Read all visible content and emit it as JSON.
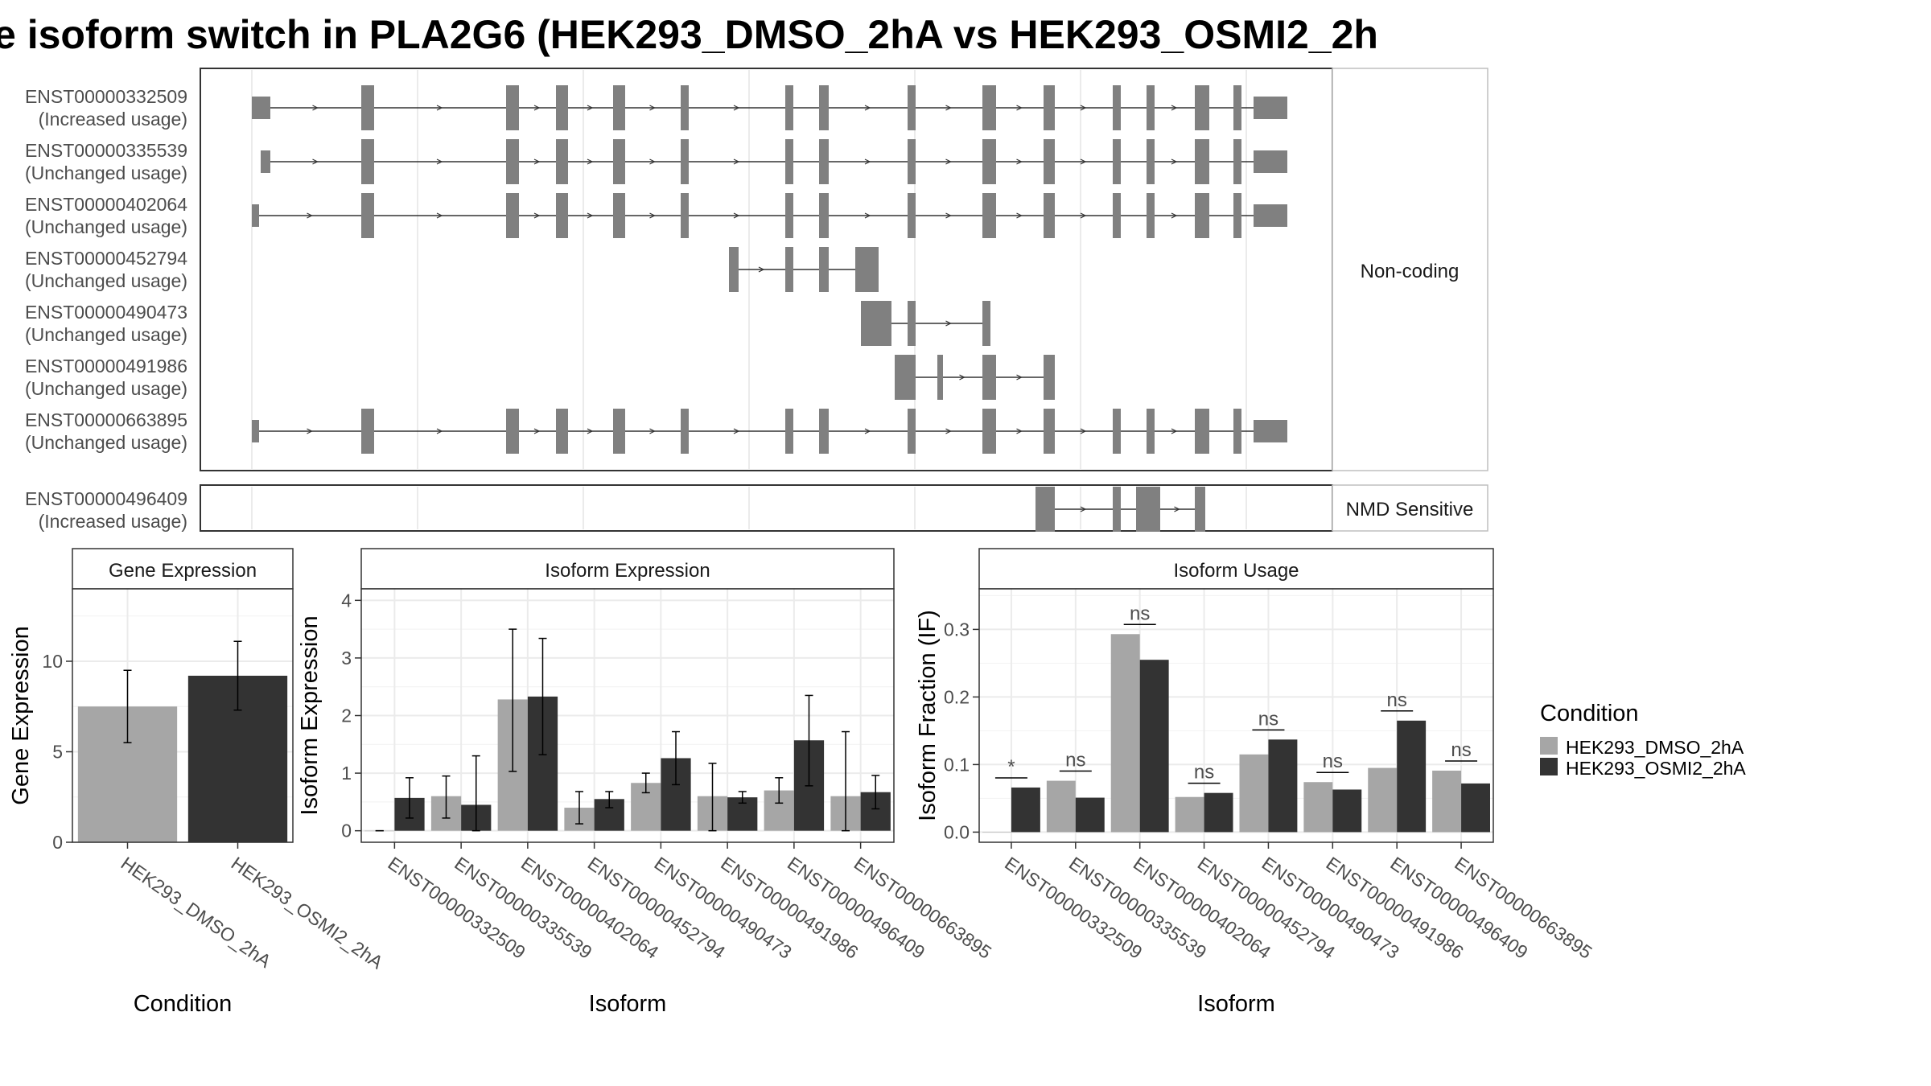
{
  "title": "e isoform switch in PLA2G6 (HEK293_DMSO_2hA vs HEK293_OSMI2_2h",
  "colors": {
    "dmso": "#a6a6a6",
    "osmi": "#333333",
    "exon": "#808080",
    "grid": "#ebebeb",
    "border": "#333333",
    "strip": "#d9d9d9"
  },
  "transcript_plot": {
    "panels": [
      {
        "label": "Non-coding",
        "transcripts": [
          {
            "id": "ENST00000332509",
            "usage": "(Increased usage)"
          },
          {
            "id": "ENST00000335539",
            "usage": "(Unchanged usage)"
          },
          {
            "id": "ENST00000402064",
            "usage": "(Unchanged usage)"
          },
          {
            "id": "ENST00000452794",
            "usage": "(Unchanged usage)"
          },
          {
            "id": "ENST00000490473",
            "usage": "(Unchanged usage)"
          },
          {
            "id": "ENST00000491986",
            "usage": "(Unchanged usage)"
          },
          {
            "id": "ENST00000663895",
            "usage": "(Unchanged usage)"
          }
        ]
      },
      {
        "label": "NMD Sensitive",
        "transcripts": [
          {
            "id": "ENST00000496409",
            "usage": "(Increased usage)"
          }
        ]
      }
    ]
  },
  "chart_data": [
    {
      "type": "bar",
      "title": "Gene Expression",
      "xlabel": "Condition",
      "ylabel": "Gene Expression",
      "ylim": [
        0,
        14
      ],
      "yticks": [
        0,
        5,
        10
      ],
      "categories": [
        "HEK293_DMSO_2hA",
        "HEK293_OSMI2_2hA"
      ],
      "values": [
        7.5,
        9.2
      ],
      "error_low": [
        5.5,
        7.3
      ],
      "error_high": [
        9.5,
        11.1
      ]
    },
    {
      "type": "bar",
      "title": "Isoform Expression",
      "xlabel": "Isoform",
      "ylabel": "Isoform Expression",
      "ylim": [
        -0.2,
        4.2
      ],
      "yticks": [
        0,
        1,
        2,
        3,
        4
      ],
      "categories": [
        "ENST00000332509",
        "ENST00000335539",
        "ENST00000402064",
        "ENST00000452794",
        "ENST00000490473",
        "ENST00000491986",
        "ENST00000496409",
        "ENST00000663895"
      ],
      "series": [
        {
          "name": "HEK293_DMSO_2hA",
          "values": [
            0.0,
            0.6,
            2.28,
            0.4,
            0.83,
            0.6,
            0.7,
            0.6
          ],
          "error_low": [
            0.0,
            0.22,
            1.03,
            0.12,
            0.66,
            0.0,
            0.48,
            0.0
          ],
          "error_high": [
            0.0,
            0.95,
            3.5,
            0.68,
            1.0,
            1.17,
            0.92,
            1.72
          ]
        },
        {
          "name": "HEK293_OSMI2_2hA",
          "values": [
            0.57,
            0.45,
            2.33,
            0.55,
            1.26,
            0.58,
            1.57,
            0.67
          ],
          "error_low": [
            0.22,
            0.0,
            1.32,
            0.4,
            0.8,
            0.48,
            0.78,
            0.38
          ],
          "error_high": [
            0.92,
            1.3,
            3.34,
            0.68,
            1.72,
            0.68,
            2.35,
            0.96
          ]
        }
      ]
    },
    {
      "type": "bar",
      "title": "Isoform Usage",
      "xlabel": "Isoform",
      "ylabel": "Isoform Fraction (IF)",
      "ylim": [
        -0.015,
        0.36
      ],
      "yticks": [
        0.0,
        0.1,
        0.2,
        0.3
      ],
      "ytick_labels": [
        "0.0",
        "0.1",
        "0.2",
        "0.3"
      ],
      "categories": [
        "ENST00000332509",
        "ENST00000335539",
        "ENST00000402064",
        "ENST00000452794",
        "ENST00000490473",
        "ENST00000491986",
        "ENST00000496409",
        "ENST00000663895"
      ],
      "series": [
        {
          "name": "HEK293_DMSO_2hA",
          "values": [
            0.0,
            0.076,
            0.293,
            0.052,
            0.115,
            0.074,
            0.095,
            0.091
          ]
        },
        {
          "name": "HEK293_OSMI2_2hA",
          "values": [
            0.066,
            0.051,
            0.255,
            0.058,
            0.137,
            0.063,
            0.165,
            0.072
          ]
        }
      ],
      "significance": [
        "*",
        "ns",
        "ns",
        "ns",
        "ns",
        "ns",
        "ns",
        "ns"
      ]
    }
  ],
  "legend": {
    "title": "Condition",
    "items": [
      {
        "label": "HEK293_DMSO_2hA",
        "color": "#a6a6a6"
      },
      {
        "label": "HEK293_OSMI2_2hA",
        "color": "#333333"
      }
    ]
  }
}
